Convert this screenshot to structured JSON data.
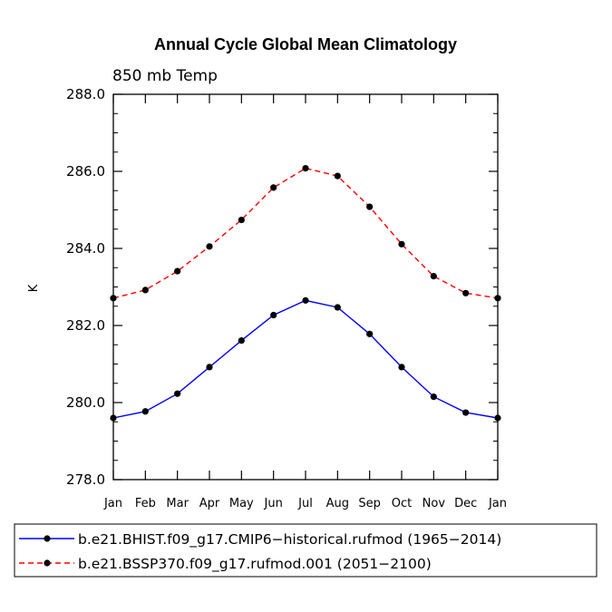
{
  "chart_data": {
    "type": "line",
    "title": "Annual Cycle Global Mean Climatology",
    "subtitle": "850 mb Temp",
    "xlabel": "",
    "ylabel": "K",
    "ylim": [
      278.0,
      288.0
    ],
    "yticks": [
      "278.0",
      "280.0",
      "282.0",
      "284.0",
      "286.0",
      "288.0"
    ],
    "categories": [
      "Jan",
      "Feb",
      "Mar",
      "Apr",
      "May",
      "Jun",
      "Jul",
      "Aug",
      "Sep",
      "Oct",
      "Nov",
      "Dec",
      "Jan"
    ],
    "series": [
      {
        "name": "b.e21.BHIST.f09_g17.CMIP6−historical.rufmod (1965−2014)",
        "color": "#0000ff",
        "line_style": "solid",
        "values": [
          279.6,
          279.77,
          280.23,
          280.92,
          281.61,
          282.27,
          282.65,
          282.47,
          281.78,
          280.92,
          280.15,
          279.74,
          279.6
        ]
      },
      {
        "name": "b.e21.BSSP370.f09_g17.rufmod.001 (2051−2100)",
        "color": "#ff0000",
        "line_style": "dashed",
        "values": [
          282.71,
          282.92,
          283.41,
          284.05,
          284.74,
          285.58,
          286.08,
          285.88,
          285.08,
          284.11,
          283.28,
          282.84,
          282.71
        ]
      }
    ],
    "legend_position": "bottom"
  }
}
